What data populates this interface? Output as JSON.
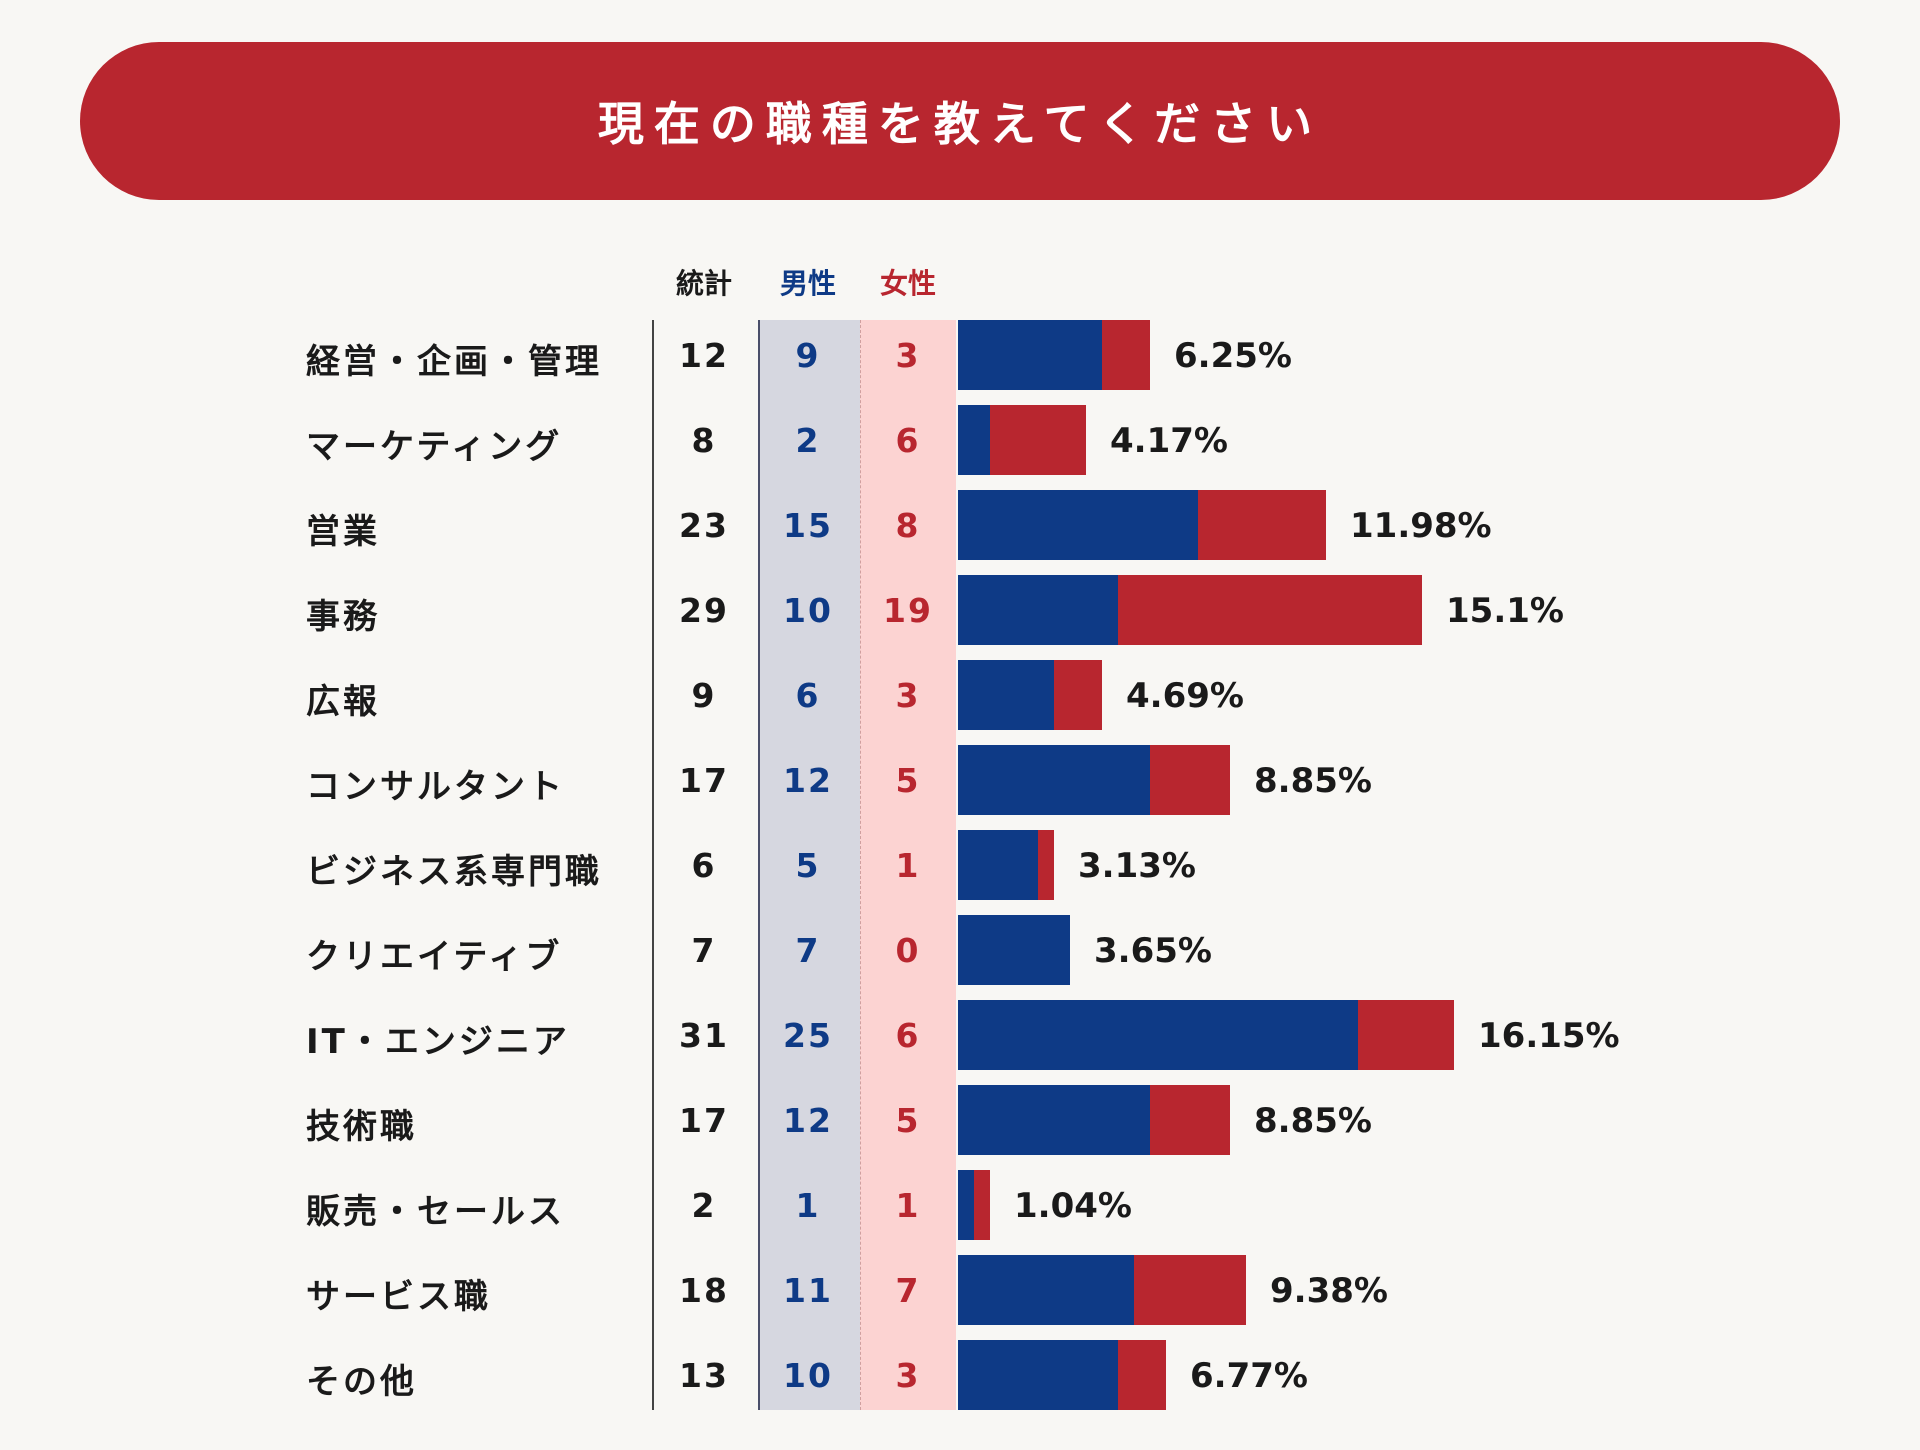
{
  "title": "現在の職種を教えてください",
  "headers": {
    "total": "統計",
    "male": "男性",
    "female": "女性"
  },
  "colors": {
    "banner": "#b8262f",
    "male": "#0e3a86",
    "female": "#b8262f"
  },
  "chart_data": {
    "type": "bar",
    "stacked": true,
    "orientation": "horizontal",
    "title": "現在の職種を教えてください",
    "categories": [
      "経営・企画・管理",
      "マーケティング",
      "営業",
      "事務",
      "広報",
      "コンサルタント",
      "ビジネス系専門職",
      "クリエイティブ",
      "IT・エンジニア",
      "技術職",
      "販売・セールス",
      "サービス職",
      "その他"
    ],
    "series": [
      {
        "name": "男性",
        "color": "#0e3a86",
        "values": [
          9,
          2,
          15,
          10,
          6,
          12,
          5,
          7,
          25,
          12,
          1,
          11,
          10
        ]
      },
      {
        "name": "女性",
        "color": "#b8262f",
        "values": [
          3,
          6,
          8,
          19,
          3,
          5,
          1,
          0,
          6,
          5,
          1,
          7,
          3
        ]
      }
    ],
    "totals": [
      12,
      8,
      23,
      29,
      9,
      17,
      6,
      7,
      31,
      17,
      2,
      18,
      13
    ],
    "percentages": [
      "6.25%",
      "4.17%",
      "11.98%",
      "15.1%",
      "4.69%",
      "8.85%",
      "3.13%",
      "3.65%",
      "16.15%",
      "8.85%",
      "1.04%",
      "9.38%",
      "6.77%"
    ],
    "grid": false,
    "legend": "none"
  }
}
